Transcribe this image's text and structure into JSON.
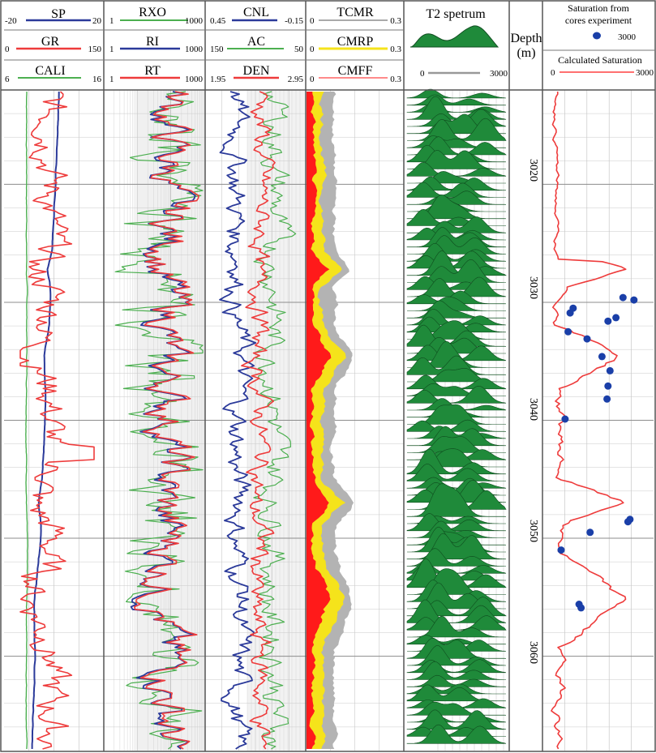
{
  "chart_data": {
    "type": "line",
    "depth_axis": {
      "label": "Depth",
      "unit": "(m)",
      "range": [
        3012,
        3068
      ],
      "ticks": [
        3020,
        3030,
        3040,
        3050,
        3060
      ]
    },
    "tracks": [
      {
        "curves": [
          {
            "name": "SP",
            "min": "-20",
            "max": "20",
            "color": "#2b3a9a"
          },
          {
            "name": "GR",
            "min": "0",
            "max": "150",
            "color": "#ee3b3b"
          },
          {
            "name": "CALI",
            "min": "6",
            "max": "16",
            "color": "#4caf50"
          }
        ]
      },
      {
        "curves": [
          {
            "name": "RXO",
            "min": "1",
            "max": "1000",
            "color": "#4caf50"
          },
          {
            "name": "RI",
            "min": "1",
            "max": "1000",
            "color": "#2b3a9a"
          },
          {
            "name": "RT",
            "min": "1",
            "max": "1000",
            "color": "#ee3b3b"
          }
        ]
      },
      {
        "curves": [
          {
            "name": "CNL",
            "min": "0.45",
            "max": "-0.15",
            "color": "#2b3a9a"
          },
          {
            "name": "AC",
            "min": "150",
            "max": "50",
            "color": "#4caf50"
          },
          {
            "name": "DEN",
            "min": "1.95",
            "max": "2.95",
            "color": "#ee3b3b"
          }
        ]
      },
      {
        "curves": [
          {
            "name": "TCMR",
            "min": "0",
            "max": "0.3",
            "color": "#aaaaaa"
          },
          {
            "name": "CMRP",
            "min": "0",
            "max": "0.3",
            "color": "#f5e31b"
          },
          {
            "name": "CMFF",
            "min": "0",
            "max": "0.3",
            "color": "#ff8a8a"
          }
        ]
      },
      {
        "title": "T2 spetrum",
        "min": "0",
        "max": "3000",
        "color": "#1f8a3a"
      },
      {
        "core_title_line1": "Saturation from",
        "core_title_line2": "cores experiment",
        "core_max": "3000",
        "core_color": "#1a3fa8",
        "calc_title": "Calculated Saturation",
        "calc_min": "0",
        "calc_max": "3000",
        "calc_color": "#ee3b3b"
      }
    ],
    "core_saturation_points": [
      {
        "depth": 3029.6,
        "value": 0.75
      },
      {
        "depth": 3029.8,
        "value": 0.86
      },
      {
        "depth": 3030.5,
        "value": 0.25
      },
      {
        "depth": 3030.9,
        "value": 0.22
      },
      {
        "depth": 3031.3,
        "value": 0.68
      },
      {
        "depth": 3031.6,
        "value": 0.6
      },
      {
        "depth": 3032.5,
        "value": 0.2
      },
      {
        "depth": 3033.1,
        "value": 0.39
      },
      {
        "depth": 3034.6,
        "value": 0.54
      },
      {
        "depth": 3035.8,
        "value": 0.62
      },
      {
        "depth": 3037.1,
        "value": 0.6
      },
      {
        "depth": 3038.2,
        "value": 0.59
      },
      {
        "depth": 3039.9,
        "value": 0.17
      },
      {
        "depth": 3048.4,
        "value": 0.82
      },
      {
        "depth": 3048.6,
        "value": 0.8
      },
      {
        "depth": 3049.5,
        "value": 0.42
      },
      {
        "depth": 3051.0,
        "value": 0.13
      },
      {
        "depth": 3055.6,
        "value": 0.31
      },
      {
        "depth": 3055.9,
        "value": 0.33
      }
    ]
  }
}
